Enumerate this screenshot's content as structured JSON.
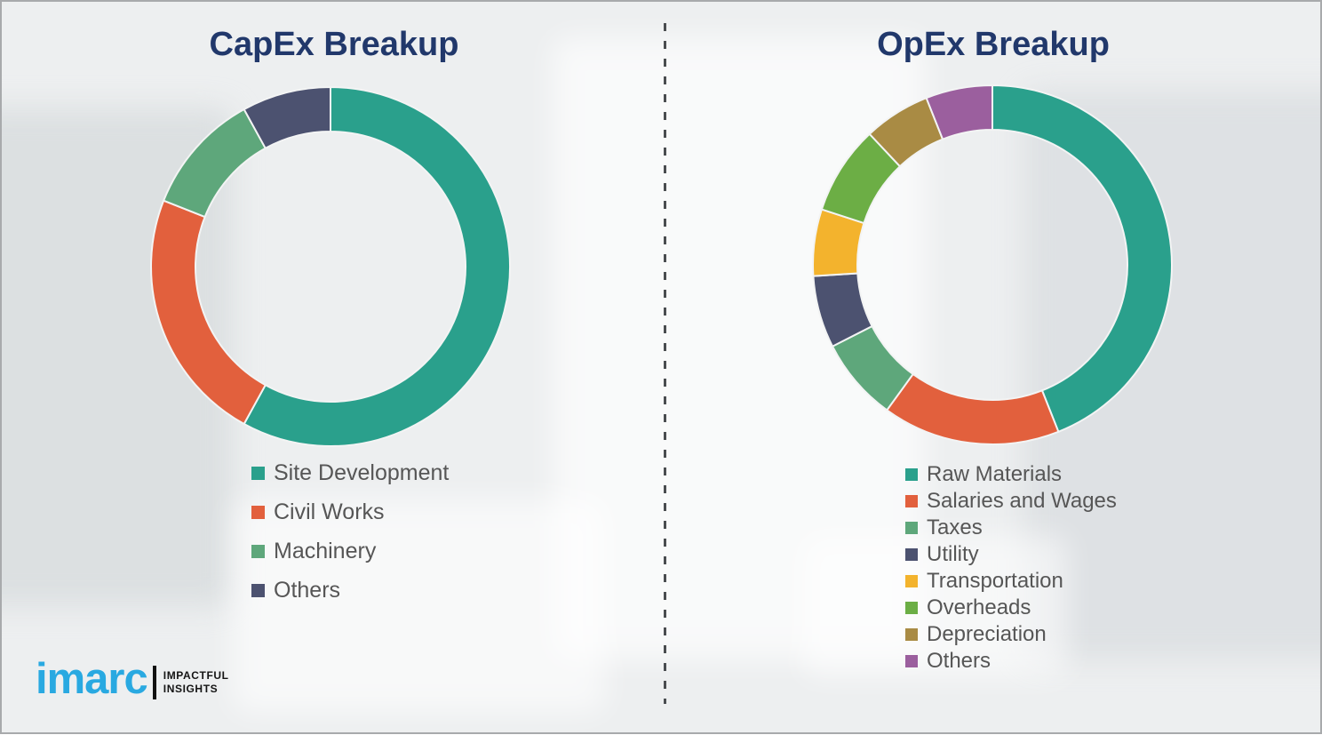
{
  "page": {
    "background_color": "#edeff0",
    "divider_color": "#4a4d50",
    "title_color": "#21386b",
    "legend_text_color": "#565656"
  },
  "logo": {
    "brand": "imarc",
    "tagline_line1": "IMPACTFUL",
    "tagline_line2": "INSIGHTS",
    "brand_color": "#29a9e1"
  },
  "chart_data": [
    {
      "type": "pie",
      "subtype": "donut",
      "title": "CapEx Breakup",
      "legend_position": "below-left",
      "start_angle_deg": 0,
      "direction": "clockwise",
      "inner_radius_ratio": 0.75,
      "values_are": "estimated_percent_share",
      "segments": [
        {
          "label": "Site Development",
          "value": 58,
          "color": "#2aa08c"
        },
        {
          "label": "Civil Works",
          "value": 23,
          "color": "#e2603d"
        },
        {
          "label": "Machinery",
          "value": 11,
          "color": "#5ea77b"
        },
        {
          "label": "Others",
          "value": 8,
          "color": "#4c5270"
        }
      ]
    },
    {
      "type": "pie",
      "subtype": "donut",
      "title": "OpEx Breakup",
      "legend_position": "below-left",
      "start_angle_deg": 0,
      "direction": "clockwise",
      "inner_radius_ratio": 0.75,
      "values_are": "estimated_percent_share",
      "segments": [
        {
          "label": "Raw Materials",
          "value": 44,
          "color": "#2aa08c"
        },
        {
          "label": "Salaries and Wages",
          "value": 16,
          "color": "#e2603d"
        },
        {
          "label": "Taxes",
          "value": 7.5,
          "color": "#5ea77b"
        },
        {
          "label": "Utility",
          "value": 6.5,
          "color": "#4c5270"
        },
        {
          "label": "Transportation",
          "value": 6,
          "color": "#f3b32d"
        },
        {
          "label": "Overheads",
          "value": 8,
          "color": "#6cae45"
        },
        {
          "label": "Depreciation",
          "value": 6,
          "color": "#a98b44"
        },
        {
          "label": "Others",
          "value": 6,
          "color": "#9b5f9e"
        }
      ]
    }
  ]
}
